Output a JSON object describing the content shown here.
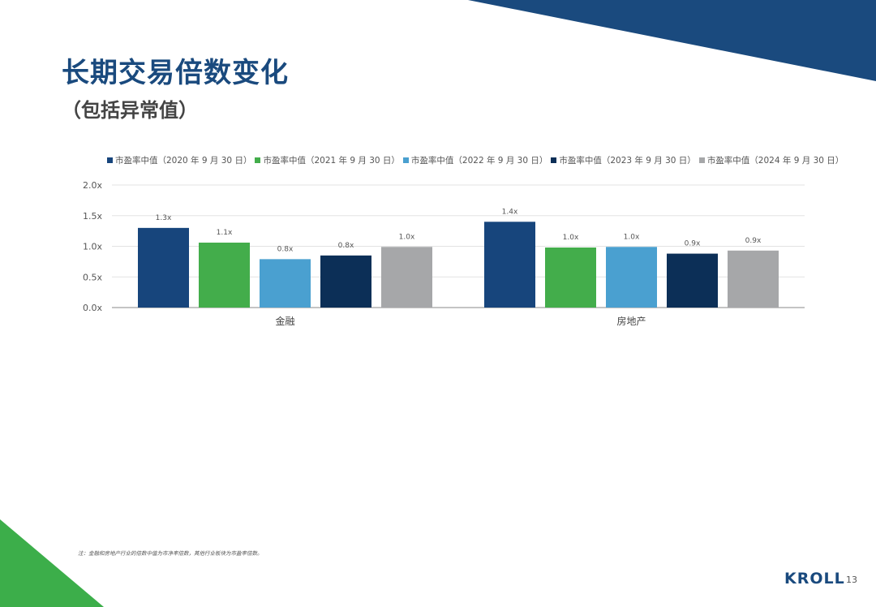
{
  "title": "长期交易倍数变化",
  "subtitle": "（包括异常值）",
  "footnote": "注：金融和房地产行业的倍数中值为市净率倍数，其他行业板块为市盈率倍数。",
  "logo_text": "KROLL",
  "page_number": "13",
  "colors": {
    "brand_navy": "#1a4a7e",
    "accent_green": "#3cae4a"
  },
  "chart_data": {
    "type": "bar",
    "categories": [
      "金融",
      "房地产"
    ],
    "series": [
      {
        "name": "市盈率中值（2020 年 9 月 30 日）",
        "color": "#17457c",
        "values": [
          1.3,
          1.4
        ],
        "labels": [
          "1.3x",
          "1.4x"
        ]
      },
      {
        "name": "市盈率中值（2021 年 9 月 30 日）",
        "color": "#43ad4b",
        "values": [
          1.06,
          0.98
        ],
        "labels": [
          "1.1x",
          "1.0x"
        ]
      },
      {
        "name": "市盈率中值（2022 年 9 月 30 日）",
        "color": "#4aa0d0",
        "values": [
          0.79,
          0.99
        ],
        "labels": [
          "0.8x",
          "1.0x"
        ]
      },
      {
        "name": "市盈率中值（2023 年 9 月 30 日）",
        "color": "#0c2f57",
        "values": [
          0.85,
          0.88
        ],
        "labels": [
          "0.8x",
          "0.9x"
        ]
      },
      {
        "name": "市盈率中值（2024 年 9 月 30 日）",
        "color": "#a6a7a9",
        "values": [
          0.99,
          0.93
        ],
        "labels": [
          "1.0x",
          "0.9x"
        ]
      }
    ],
    "yticks": [
      0,
      0.5,
      1.0,
      1.5,
      2.0
    ],
    "ytick_labels": [
      "0.0x",
      "0.5x",
      "1.0x",
      "1.5x",
      "2.0x"
    ],
    "ylim": [
      0,
      2.0
    ],
    "grid": true,
    "legend_position": "top"
  }
}
